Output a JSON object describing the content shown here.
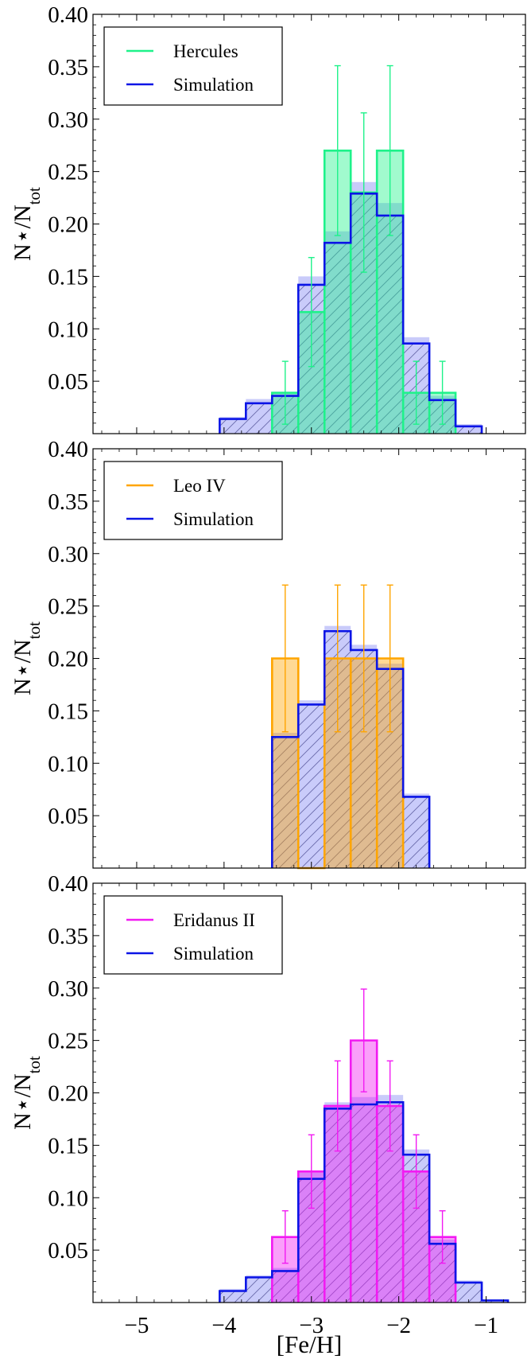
{
  "xlabel": "[Fe/H]",
  "ylabel": "N⋆/N",
  "ylabel_sub": "tot",
  "chart_data": [
    {
      "type": "bar",
      "title": "",
      "xlabel": "[Fe/H]",
      "ylabel": "N⋆/Ntot",
      "xlim": [
        -5.5,
        -0.55
      ],
      "ylim": [
        0,
        0.4
      ],
      "xticks": [
        "−5",
        "−4",
        "−3",
        "−2",
        "−1"
      ],
      "xtick_values": [
        -5,
        -4,
        -3,
        -2,
        -1
      ],
      "yticks": [
        "0.05",
        "0.10",
        "0.15",
        "0.20",
        "0.25",
        "0.30",
        "0.35",
        "0.40"
      ],
      "ytick_values": [
        0.05,
        0.1,
        0.15,
        0.2,
        0.25,
        0.3,
        0.35,
        0.4
      ],
      "legend": [
        "Hercules",
        "Simulation"
      ],
      "colors": {
        "obs": "#1EF28A",
        "sim": "#0A14E6"
      },
      "series": [
        {
          "name": "Hercules",
          "bins": [
            [
              -3.45,
              -3.15
            ],
            [
              -3.15,
              -2.85
            ],
            [
              -2.85,
              -2.55
            ],
            [
              -2.55,
              -2.25
            ],
            [
              -2.25,
              -1.95
            ],
            [
              -1.95,
              -1.65
            ],
            [
              -1.65,
              -1.35
            ]
          ],
          "values": [
            0.039,
            0.116,
            0.27,
            0.23,
            0.27,
            0.039,
            0.039
          ],
          "errors": [
            0.03,
            0.052,
            0.081,
            0.076,
            0.081,
            0.03,
            0.03
          ]
        },
        {
          "name": "Simulation",
          "bins": [
            [
              -4.05,
              -3.75
            ],
            [
              -3.75,
              -3.45
            ],
            [
              -3.45,
              -3.15
            ],
            [
              -3.15,
              -2.85
            ],
            [
              -2.85,
              -2.55
            ],
            [
              -2.55,
              -2.25
            ],
            [
              -2.25,
              -1.95
            ],
            [
              -1.95,
              -1.65
            ],
            [
              -1.65,
              -1.35
            ],
            [
              -1.35,
              -1.05
            ]
          ],
          "values": [
            0.014,
            0.029,
            0.036,
            0.142,
            0.182,
            0.229,
            0.208,
            0.086,
            0.032,
            0.007
          ],
          "band_hi": [
            0.016,
            0.033,
            0.04,
            0.15,
            0.193,
            0.24,
            0.22,
            0.092,
            0.036,
            0.009
          ]
        }
      ]
    },
    {
      "type": "bar",
      "title": "",
      "xlabel": "[Fe/H]",
      "ylabel": "N⋆/Ntot",
      "xlim": [
        -5.5,
        -0.55
      ],
      "ylim": [
        0,
        0.4
      ],
      "xticks": [
        "−5",
        "−4",
        "−3",
        "−2",
        "−1"
      ],
      "xtick_values": [
        -5,
        -4,
        -3,
        -2,
        -1
      ],
      "yticks": [
        "0.05",
        "0.10",
        "0.15",
        "0.20",
        "0.25",
        "0.30",
        "0.35",
        "0.40"
      ],
      "ytick_values": [
        0.05,
        0.1,
        0.15,
        0.2,
        0.25,
        0.3,
        0.35,
        0.4
      ],
      "legend": [
        "Leo IV",
        "Simulation"
      ],
      "colors": {
        "obs": "#FFA500",
        "sim": "#0A14E6"
      },
      "series": [
        {
          "name": "Leo IV",
          "bins": [
            [
              -3.45,
              -3.15
            ],
            [
              -3.15,
              -2.85
            ],
            [
              -2.85,
              -2.55
            ],
            [
              -2.55,
              -2.25
            ],
            [
              -2.25,
              -1.95
            ]
          ],
          "values": [
            0.2,
            0.0,
            0.2,
            0.2,
            0.2
          ],
          "errors": [
            0.07,
            0.0,
            0.07,
            0.07,
            0.07
          ]
        },
        {
          "name": "Simulation",
          "bins": [
            [
              -3.45,
              -3.15
            ],
            [
              -3.15,
              -2.85
            ],
            [
              -2.85,
              -2.55
            ],
            [
              -2.55,
              -2.25
            ],
            [
              -2.25,
              -1.95
            ],
            [
              -1.95,
              -1.65
            ]
          ],
          "values": [
            0.125,
            0.156,
            0.226,
            0.208,
            0.19,
            0.068
          ],
          "band_hi": [
            0.129,
            0.16,
            0.231,
            0.213,
            0.195,
            0.071
          ]
        }
      ]
    },
    {
      "type": "bar",
      "title": "",
      "xlabel": "[Fe/H]",
      "ylabel": "N⋆/Ntot",
      "xlim": [
        -5.5,
        -0.55
      ],
      "ylim": [
        0,
        0.4
      ],
      "xticks": [
        "−5",
        "−4",
        "−3",
        "−2",
        "−1"
      ],
      "xtick_values": [
        -5,
        -4,
        -3,
        -2,
        -1
      ],
      "yticks": [
        "0.05",
        "0.10",
        "0.15",
        "0.20",
        "0.25",
        "0.30",
        "0.35",
        "0.40"
      ],
      "ytick_values": [
        0.05,
        0.1,
        0.15,
        0.2,
        0.25,
        0.3,
        0.35,
        0.4
      ],
      "legend": [
        "Eridanus II",
        "Simulation"
      ],
      "colors": {
        "obs": "#F21AF2",
        "sim": "#0A14E6"
      },
      "series": [
        {
          "name": "Eridanus II",
          "bins": [
            [
              -3.45,
              -3.15
            ],
            [
              -3.15,
              -2.85
            ],
            [
              -2.85,
              -2.55
            ],
            [
              -2.55,
              -2.25
            ],
            [
              -2.25,
              -1.95
            ],
            [
              -1.95,
              -1.65
            ],
            [
              -1.65,
              -1.35
            ]
          ],
          "values": [
            0.0625,
            0.125,
            0.1875,
            0.25,
            0.1875,
            0.125,
            0.0625
          ],
          "errors": [
            0.025,
            0.035,
            0.043,
            0.049,
            0.043,
            0.035,
            0.025
          ]
        },
        {
          "name": "Simulation",
          "bins": [
            [
              -4.05,
              -3.75
            ],
            [
              -3.75,
              -3.45
            ],
            [
              -3.45,
              -3.15
            ],
            [
              -3.15,
              -2.85
            ],
            [
              -2.85,
              -2.55
            ],
            [
              -2.55,
              -2.25
            ],
            [
              -2.25,
              -1.95
            ],
            [
              -1.95,
              -1.65
            ],
            [
              -1.65,
              -1.35
            ],
            [
              -1.35,
              -1.05
            ],
            [
              -1.05,
              -0.75
            ]
          ],
          "values": [
            0.011,
            0.024,
            0.03,
            0.118,
            0.185,
            0.189,
            0.191,
            0.141,
            0.056,
            0.019,
            0.002
          ],
          "band_hi": [
            0.013,
            0.026,
            0.033,
            0.124,
            0.191,
            0.196,
            0.198,
            0.146,
            0.06,
            0.021,
            0.003
          ]
        }
      ]
    }
  ]
}
